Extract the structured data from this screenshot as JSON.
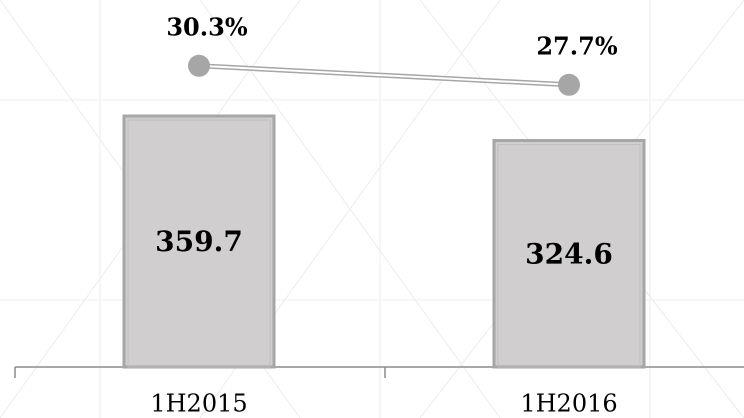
{
  "chart_data": {
    "type": "bar",
    "categories": [
      "1H2015",
      "1H2016"
    ],
    "series": [
      {
        "type": "bar",
        "color": "#d0cece",
        "values": [
          359.7,
          324.6
        ]
      },
      {
        "type": "line",
        "axis": "y2",
        "color": "#a6a6a6",
        "values": [
          30.3,
          27.7
        ],
        "value_labels": [
          "30.3%",
          "27.7%"
        ]
      }
    ],
    "ylim": [
      0,
      526
    ],
    "y2lim": [
      -10.9,
      39.3
    ]
  }
}
